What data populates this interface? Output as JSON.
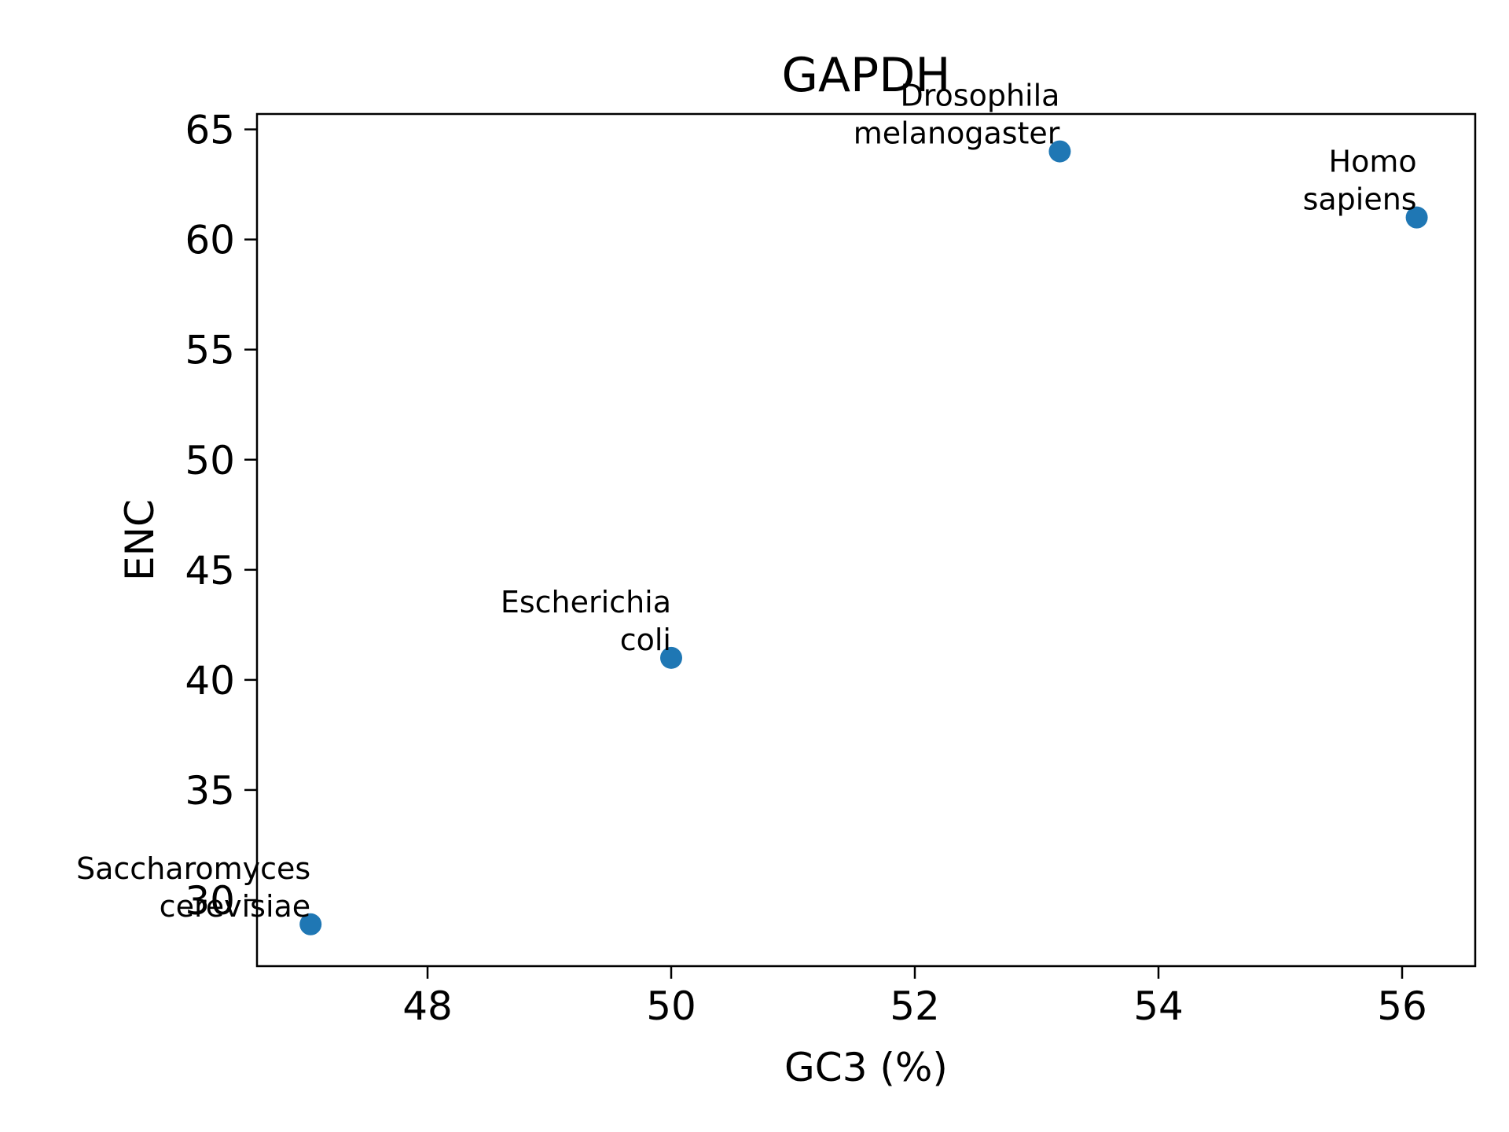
{
  "chart_data": {
    "type": "scatter",
    "title": "GAPDH",
    "xlabel": "GC3  (%)",
    "ylabel": "ENC",
    "xlim": [
      46.6,
      56.6
    ],
    "ylim": [
      27.0,
      65.7
    ],
    "xticks": [
      48,
      50,
      52,
      54,
      56
    ],
    "yticks": [
      30,
      35,
      40,
      45,
      50,
      55,
      60,
      65
    ],
    "grid": false,
    "marker_color": "#1f77b4",
    "points": [
      {
        "x": 47.04,
        "y": 28.9,
        "label_line1": "Saccharomyces",
        "label_line2": "cerevisiae"
      },
      {
        "x": 50.0,
        "y": 41.0,
        "label_line1": "Escherichia",
        "label_line2": "coli"
      },
      {
        "x": 53.19,
        "y": 64.0,
        "label_line1": "Drosophila",
        "label_line2": "melanogaster"
      },
      {
        "x": 56.12,
        "y": 61.0,
        "label_line1": "Homo",
        "label_line2": "sapiens"
      }
    ]
  }
}
